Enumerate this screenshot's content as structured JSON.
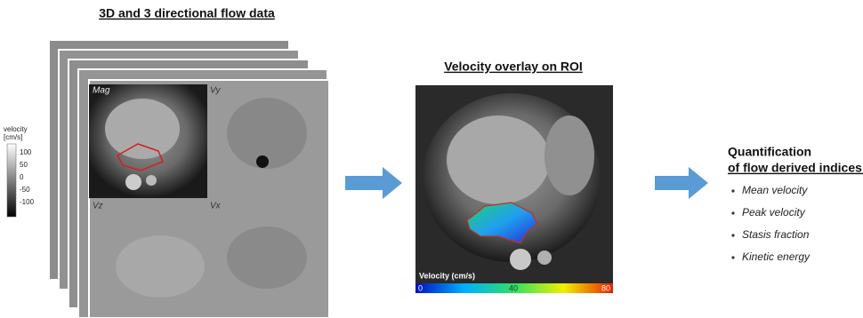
{
  "left_panel": {
    "title": "3D and 3 directional flow data",
    "colorbar": {
      "title_lines": [
        "velocity",
        "[cm/s]"
      ],
      "ticks": [
        100,
        50,
        0,
        -50,
        -100
      ]
    },
    "panel_labels": [
      "Mag",
      "Vy",
      "Vz",
      "Vx"
    ]
  },
  "middle_panel": {
    "title": "Velocity overlay on ROI",
    "colorbar": {
      "title": "Velocity (cm/s)",
      "ticks": [
        0,
        40,
        80
      ]
    }
  },
  "right_panel": {
    "title_lines": [
      "Quantification",
      "of flow derived indices:"
    ],
    "items": [
      "Mean velocity",
      "Peak velocity",
      "Stasis fraction",
      "Kinetic energy"
    ]
  }
}
